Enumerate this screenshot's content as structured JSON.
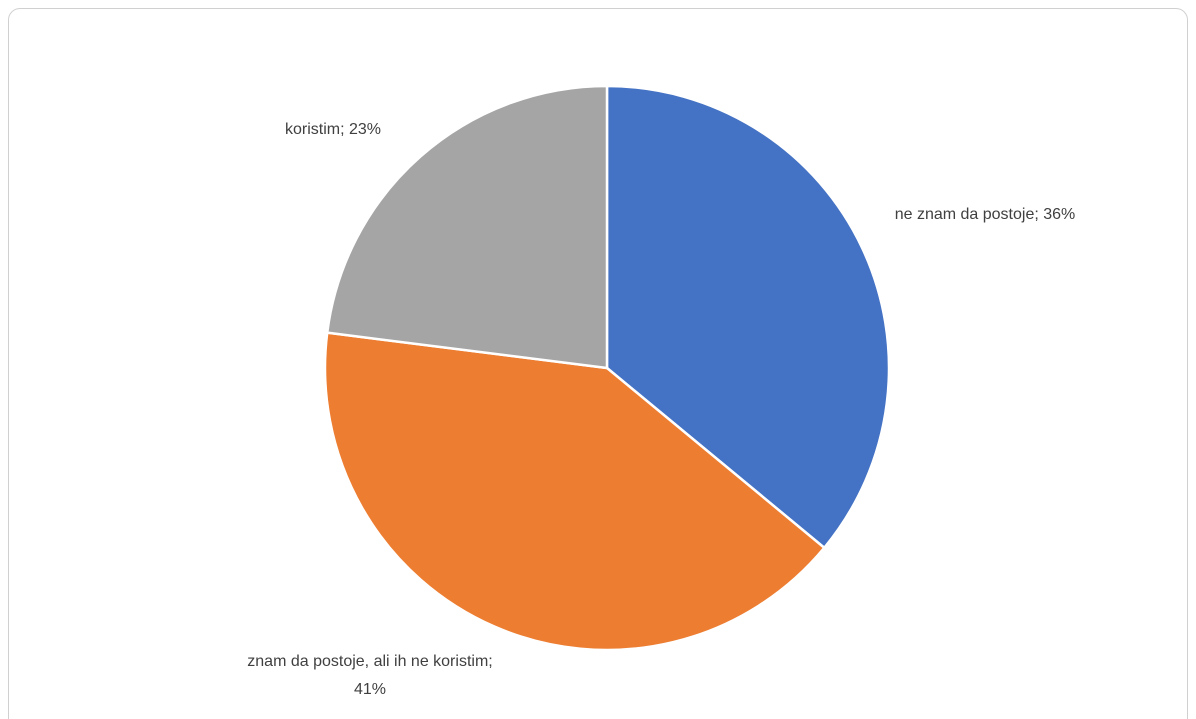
{
  "chart_data": {
    "type": "pie",
    "categories": [
      "ne znam da postoje",
      "znam da postoje, ali ih ne koristim",
      "koristim"
    ],
    "values": [
      36,
      41,
      23
    ],
    "value_labels": [
      "36%",
      "41%",
      "23%"
    ],
    "label_separator": "; ",
    "colors": [
      "#4472c4",
      "#ed7d31",
      "#a5a5a5"
    ]
  }
}
